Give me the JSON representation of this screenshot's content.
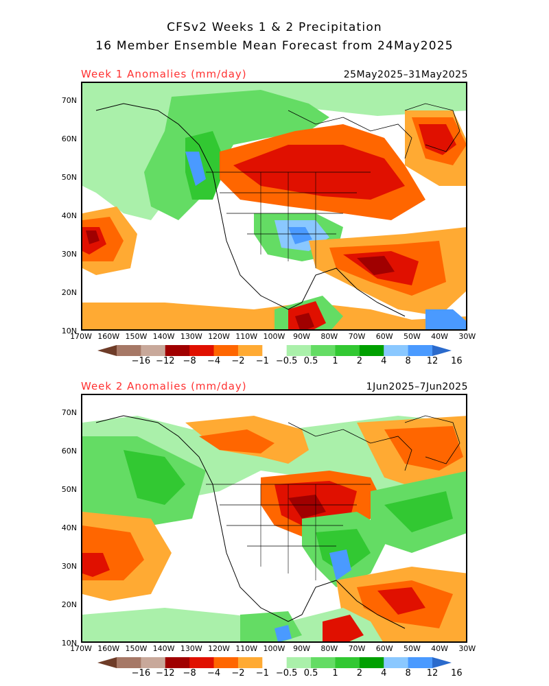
{
  "header": {
    "line1": "CFSv2 Weeks 1 & 2 Precipitation",
    "line2": "16 Member Ensemble Mean Forecast from 24May2025"
  },
  "panels": [
    {
      "title": "Week 1 Anomalies (mm/day)",
      "dates": "25May2025–31May2025"
    },
    {
      "title": "Week 2 Anomalies (mm/day)",
      "dates": "1Jun2025–7Jun2025"
    }
  ],
  "axes": {
    "lat_labels": [
      "70N",
      "60N",
      "50N",
      "40N",
      "30N",
      "20N",
      "10N"
    ],
    "lon_labels": [
      "170W",
      "160W",
      "150W",
      "140W",
      "130W",
      "120W",
      "110W",
      "100W",
      "90W",
      "80W",
      "70W",
      "60W",
      "50W",
      "40W",
      "30W"
    ]
  },
  "colorbar": {
    "labels": [
      "−16",
      "−12",
      "−8",
      "−4",
      "−2",
      "−1",
      "−0.5",
      "0.5",
      "1",
      "2",
      "4",
      "8",
      "12",
      "16"
    ],
    "colors": [
      "#6e3c28",
      "#a67866",
      "#c8a89a",
      "#a00000",
      "#e01000",
      "#ff6600",
      "#ffaa33",
      "#ffffff",
      "#aaf0aa",
      "#64dc64",
      "#32c832",
      "#00a000",
      "#8ac8ff",
      "#4a9aff",
      "#2a6acc"
    ]
  },
  "colors": {
    "title_red": "#ff3030"
  }
}
